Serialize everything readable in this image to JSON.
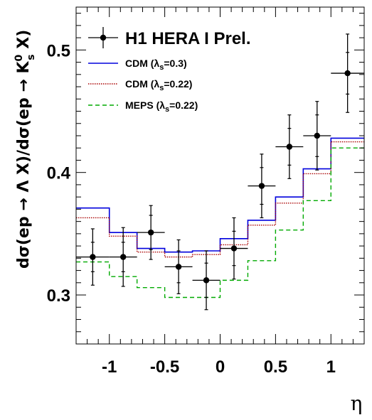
{
  "chart_data": {
    "type": "line",
    "xlabel": "η",
    "ylabel": {
      "prefix": "dσ(ep → Λ X)/dσ(ep → K",
      "superscript": "0",
      "subscript": "s",
      "suffix": " X)"
    },
    "xlim": [
      -1.3,
      1.3
    ],
    "ylim": [
      0.26,
      0.535
    ],
    "x_ticks": [
      {
        "value": -1,
        "label": "-1"
      },
      {
        "value": -0.5,
        "label": "-0.5"
      },
      {
        "value": 0,
        "label": "0"
      },
      {
        "value": 0.5,
        "label": "0.5"
      },
      {
        "value": 1,
        "label": "1"
      }
    ],
    "y_ticks": [
      {
        "value": 0.3,
        "label": "0.3"
      },
      {
        "value": 0.4,
        "label": "0.4"
      },
      {
        "value": 0.5,
        "label": "0.5"
      }
    ],
    "legend": {
      "placement": "top-left",
      "title": "H1 HERA I Prel.",
      "entries": [
        {
          "prefix": "CDM (λ",
          "sub": "s",
          "suffix": "=0.3)"
        },
        {
          "prefix": "CDM (λ",
          "sub": "s",
          "suffix": "=0.22)"
        },
        {
          "prefix": "MEPS (λ",
          "sub": "s",
          "suffix": "=0.22)"
        }
      ]
    },
    "data_points": {
      "name": "H1 HERA I Prel.",
      "color": "#000000",
      "points": [
        {
          "x": -1.15,
          "x_lo": -1.3,
          "x_hi": -1.0,
          "y": 0.331,
          "stat": 0.012,
          "syst": 0.023
        },
        {
          "x": -0.875,
          "x_lo": -1.0,
          "x_hi": -0.75,
          "y": 0.331,
          "stat": 0.012,
          "syst": 0.024
        },
        {
          "x": -0.625,
          "x_lo": -0.75,
          "x_hi": -0.5,
          "y": 0.351,
          "stat": 0.014,
          "syst": 0.022
        },
        {
          "x": -0.375,
          "x_lo": -0.5,
          "x_hi": -0.25,
          "y": 0.323,
          "stat": 0.013,
          "syst": 0.022
        },
        {
          "x": -0.125,
          "x_lo": -0.25,
          "x_hi": 0.0,
          "y": 0.312,
          "stat": 0.014,
          "syst": 0.024
        },
        {
          "x": 0.125,
          "x_lo": 0.0,
          "x_hi": 0.25,
          "y": 0.338,
          "stat": 0.014,
          "syst": 0.025
        },
        {
          "x": 0.375,
          "x_lo": 0.25,
          "x_hi": 0.5,
          "y": 0.389,
          "stat": 0.015,
          "syst": 0.026
        },
        {
          "x": 0.625,
          "x_lo": 0.5,
          "x_hi": 0.75,
          "y": 0.421,
          "stat": 0.015,
          "syst": 0.026
        },
        {
          "x": 0.875,
          "x_lo": 0.75,
          "x_hi": 1.0,
          "y": 0.43,
          "stat": 0.017,
          "syst": 0.028
        },
        {
          "x": 1.15,
          "x_lo": 1.0,
          "x_hi": 1.3,
          "y": 0.481,
          "stat": 0.017,
          "syst": 0.032
        }
      ]
    },
    "series": [
      {
        "name": "CDM (λs=0.3)",
        "color": "#0000dd",
        "style": "solid",
        "bin_edges": [
          -1.3,
          -1.0,
          -0.75,
          -0.5,
          -0.25,
          0.0,
          0.25,
          0.5,
          0.75,
          1.0,
          1.3
        ],
        "values": [
          0.371,
          0.351,
          0.338,
          0.335,
          0.336,
          0.346,
          0.361,
          0.38,
          0.403,
          0.428
        ]
      },
      {
        "name": "CDM (λs=0.22)",
        "color": "#aa0000",
        "style": "dotted",
        "bin_edges": [
          -1.3,
          -1.0,
          -0.75,
          -0.5,
          -0.25,
          0.0,
          0.25,
          0.5,
          0.75,
          1.0,
          1.3
        ],
        "values": [
          0.363,
          0.348,
          0.335,
          0.331,
          0.333,
          0.341,
          0.357,
          0.375,
          0.399,
          0.425
        ]
      },
      {
        "name": "MEPS (λs=0.22)",
        "color": "#00aa00",
        "style": "dashed",
        "bin_edges": [
          -1.3,
          -1.0,
          -0.75,
          -0.5,
          -0.25,
          0.0,
          0.25,
          0.5,
          0.75,
          1.0,
          1.3
        ],
        "values": [
          0.327,
          0.315,
          0.306,
          0.298,
          0.298,
          0.312,
          0.328,
          0.353,
          0.377,
          0.42
        ]
      }
    ]
  }
}
